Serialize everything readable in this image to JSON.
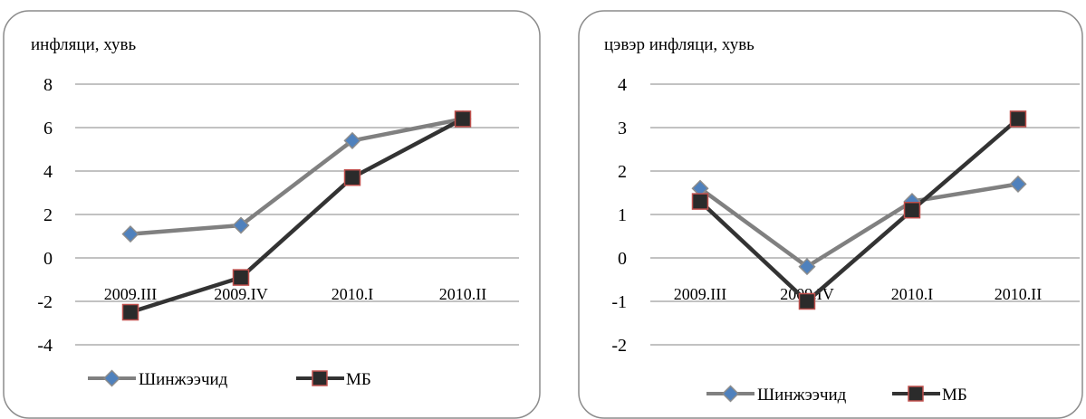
{
  "colors": {
    "frame": "#8c8c8c",
    "grid": "#868686",
    "series_gray": "#808080",
    "series_dark": "#333333",
    "diamond_fill": "#4f81bd",
    "diamond_stroke": "#8c8c8c",
    "square_fill": "#2b2b2b",
    "square_stroke": "#c0504d"
  },
  "chart_data": [
    {
      "type": "line",
      "title": "инфляци, хувь",
      "categories": [
        "2009.III",
        "2009.IV",
        "2010.I",
        "2010.II"
      ],
      "yticks": [
        "8",
        "6",
        "4",
        "2",
        "0",
        "-2",
        "-4"
      ],
      "ylim": [
        -4,
        8
      ],
      "grid": true,
      "legend": "bottom",
      "series": [
        {
          "name": "Шинжээчид",
          "values": [
            1.1,
            1.5,
            5.4,
            6.4
          ],
          "color": "#808080",
          "marker": "diamond"
        },
        {
          "name": "МБ",
          "values": [
            -2.5,
            -0.9,
            3.7,
            6.4
          ],
          "color": "#333333",
          "marker": "square"
        }
      ]
    },
    {
      "type": "line",
      "title": "цэвэр инфляци, хувь",
      "categories": [
        "2009.III",
        "2009.IV",
        "2010.I",
        "2010.II"
      ],
      "yticks": [
        "4",
        "3",
        "2",
        "1",
        "0",
        "-1",
        "-2"
      ],
      "ylim": [
        -2,
        4
      ],
      "grid": true,
      "legend": "bottom",
      "series": [
        {
          "name": "Шинжээчид",
          "values": [
            1.6,
            -0.2,
            1.3,
            1.7
          ],
          "color": "#808080",
          "marker": "diamond"
        },
        {
          "name": "МБ",
          "values": [
            1.3,
            -1.0,
            1.1,
            3.2
          ],
          "color": "#333333",
          "marker": "square"
        }
      ]
    }
  ]
}
